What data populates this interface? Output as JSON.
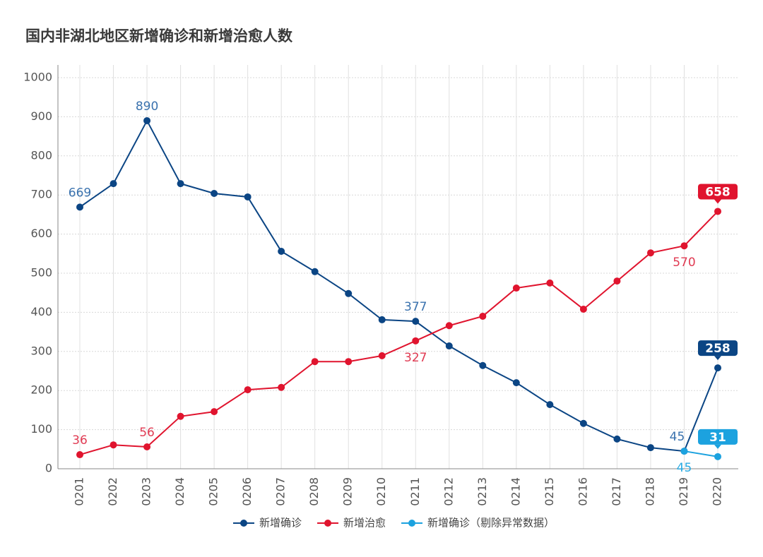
{
  "chart_data": {
    "type": "line",
    "title": "国内非湖北地区新增确诊和新增治愈人数",
    "categories": [
      "0201",
      "0202",
      "0203",
      "0204",
      "0205",
      "0206",
      "0207",
      "0208",
      "0209",
      "0210",
      "0211",
      "0212",
      "0213",
      "0214",
      "0215",
      "0216",
      "0217",
      "0218",
      "0219",
      "0220"
    ],
    "series": [
      {
        "name": "新增确诊",
        "color": "#0b4584",
        "values": [
          669,
          729,
          890,
          729,
          704,
          695,
          556,
          504,
          448,
          381,
          377,
          314,
          264,
          220,
          164,
          116,
          76,
          54,
          45,
          258
        ],
        "value_labels": [
          "669",
          null,
          "890",
          null,
          null,
          null,
          null,
          null,
          null,
          null,
          "377",
          null,
          null,
          null,
          null,
          null,
          null,
          null,
          "45",
          "258"
        ]
      },
      {
        "name": "新增治愈",
        "color": "#e0142e",
        "values": [
          36,
          61,
          56,
          134,
          146,
          202,
          208,
          274,
          274,
          289,
          327,
          366,
          390,
          462,
          475,
          408,
          480,
          552,
          570,
          658
        ],
        "value_labels": [
          "36",
          null,
          "56",
          null,
          null,
          null,
          null,
          null,
          null,
          null,
          "327",
          null,
          null,
          null,
          null,
          null,
          null,
          null,
          "570",
          "658"
        ]
      },
      {
        "name": "新增确诊（剔除异常数据）",
        "color": "#1ca2df",
        "values": [
          null,
          null,
          null,
          null,
          null,
          null,
          null,
          null,
          null,
          null,
          null,
          null,
          null,
          null,
          null,
          null,
          null,
          null,
          45,
          31
        ],
        "value_labels": [
          null,
          null,
          null,
          null,
          null,
          null,
          null,
          null,
          null,
          null,
          null,
          null,
          null,
          null,
          null,
          null,
          null,
          null,
          "45",
          "31"
        ]
      }
    ],
    "ylim": [
      0,
      1000
    ],
    "yticks": [
      0,
      100,
      200,
      300,
      400,
      500,
      600,
      700,
      800,
      900,
      1000
    ],
    "grid": true,
    "legend": "bottom"
  }
}
